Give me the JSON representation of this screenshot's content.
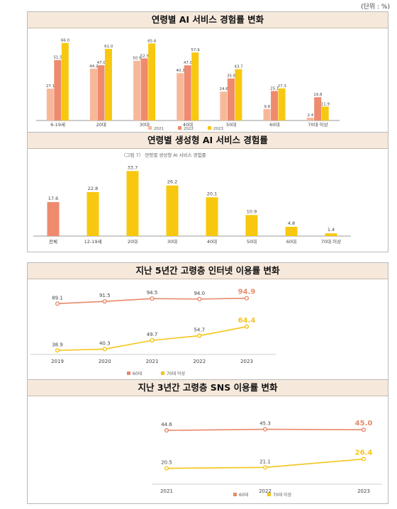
{
  "unit_note": "(단위 : %)",
  "chart_data": [
    {
      "type": "bar",
      "title": "연령별 AI 서비스 경험률 변화",
      "categories": [
        "6-19세",
        "20대",
        "30대",
        "40대",
        "50대",
        "60대",
        "70대 이상"
      ],
      "series": [
        {
          "name": "2021",
          "color": "#f7b89a",
          "values": [
            27.1,
            44.2,
            50.9,
            40.3,
            24.6,
            9.8,
            2.4
          ]
        },
        {
          "name": "2022",
          "color": "#ee8a6e",
          "values": [
            51.5,
            47.0,
            52.9,
            47.0,
            35.8,
            25.1,
            19.8
          ]
        },
        {
          "name": "2023",
          "color": "#f7c80f",
          "values": [
            66.0,
            61.0,
            65.6,
            57.9,
            43.7,
            27.3,
            11.9
          ]
        }
      ],
      "ylim": [
        0,
        70
      ],
      "legend": "bottom"
    },
    {
      "type": "bar",
      "title": "연령별 생성형 AI 서비스 경험률",
      "subtitle": "〈그림 7〉 연령별 생성형 AI 서비스 경험률",
      "categories": [
        "전체",
        "12-19세",
        "20대",
        "30대",
        "40대",
        "50대",
        "60대",
        "70대 이상"
      ],
      "values": [
        17.6,
        22.8,
        33.7,
        26.2,
        20.1,
        10.9,
        4.8,
        1.4
      ],
      "colors": [
        "#ee8a6e",
        "#f7c80f",
        "#f7c80f",
        "#f7c80f",
        "#f7c80f",
        "#f7c80f",
        "#f7c80f",
        "#f7c80f"
      ],
      "ylim": [
        0,
        36
      ]
    },
    {
      "type": "line",
      "title": "지난 5년간 고령층 인터넷 이용률 변화",
      "x": [
        "2019",
        "2020",
        "2021",
        "2022",
        "2023"
      ],
      "series": [
        {
          "name": "60대",
          "color": "#e8896a",
          "values": [
            89.1,
            91.5,
            94.5,
            94.0,
            94.9
          ]
        },
        {
          "name": "70대 이상",
          "color": "#f5c518",
          "values": [
            38.9,
            40.3,
            49.7,
            54.7,
            64.4
          ]
        }
      ],
      "ylim": [
        30,
        100
      ],
      "legend": "bottom"
    },
    {
      "type": "line",
      "title": "지난 3년간 고령층 SNS 이용률 변화",
      "x": [
        "2021",
        "2022",
        "2023"
      ],
      "series": [
        {
          "name": "60대",
          "color": "#e8896a",
          "values": [
            44.6,
            45.3,
            45.0
          ]
        },
        {
          "name": "70대 이상",
          "color": "#f5c518",
          "values": [
            20.5,
            21.1,
            26.4
          ]
        }
      ],
      "ylim": [
        10,
        55
      ],
      "legend": "bottom"
    }
  ]
}
